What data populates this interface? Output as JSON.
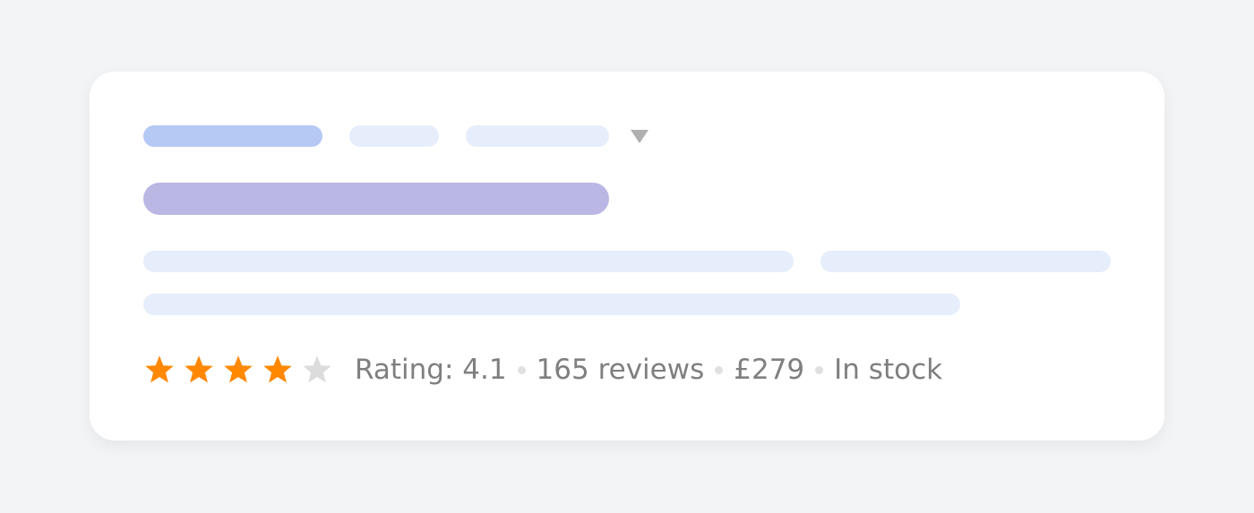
{
  "colors": {
    "primary_skeleton": "#b5c9f4",
    "light_skeleton": "#e6edfb",
    "title_skeleton": "#bab7e4",
    "star_filled": "#ff8800",
    "star_empty": "#dcdcdc",
    "caret": "#b0b0b0"
  },
  "rating": {
    "stars_filled": 4,
    "stars_total": 5,
    "label": "Rating: 4.1",
    "reviews": "165 reviews",
    "price": "£279",
    "stock": "In stock"
  },
  "icons": {
    "dropdown": "caret-down-icon",
    "star": "star-icon"
  }
}
